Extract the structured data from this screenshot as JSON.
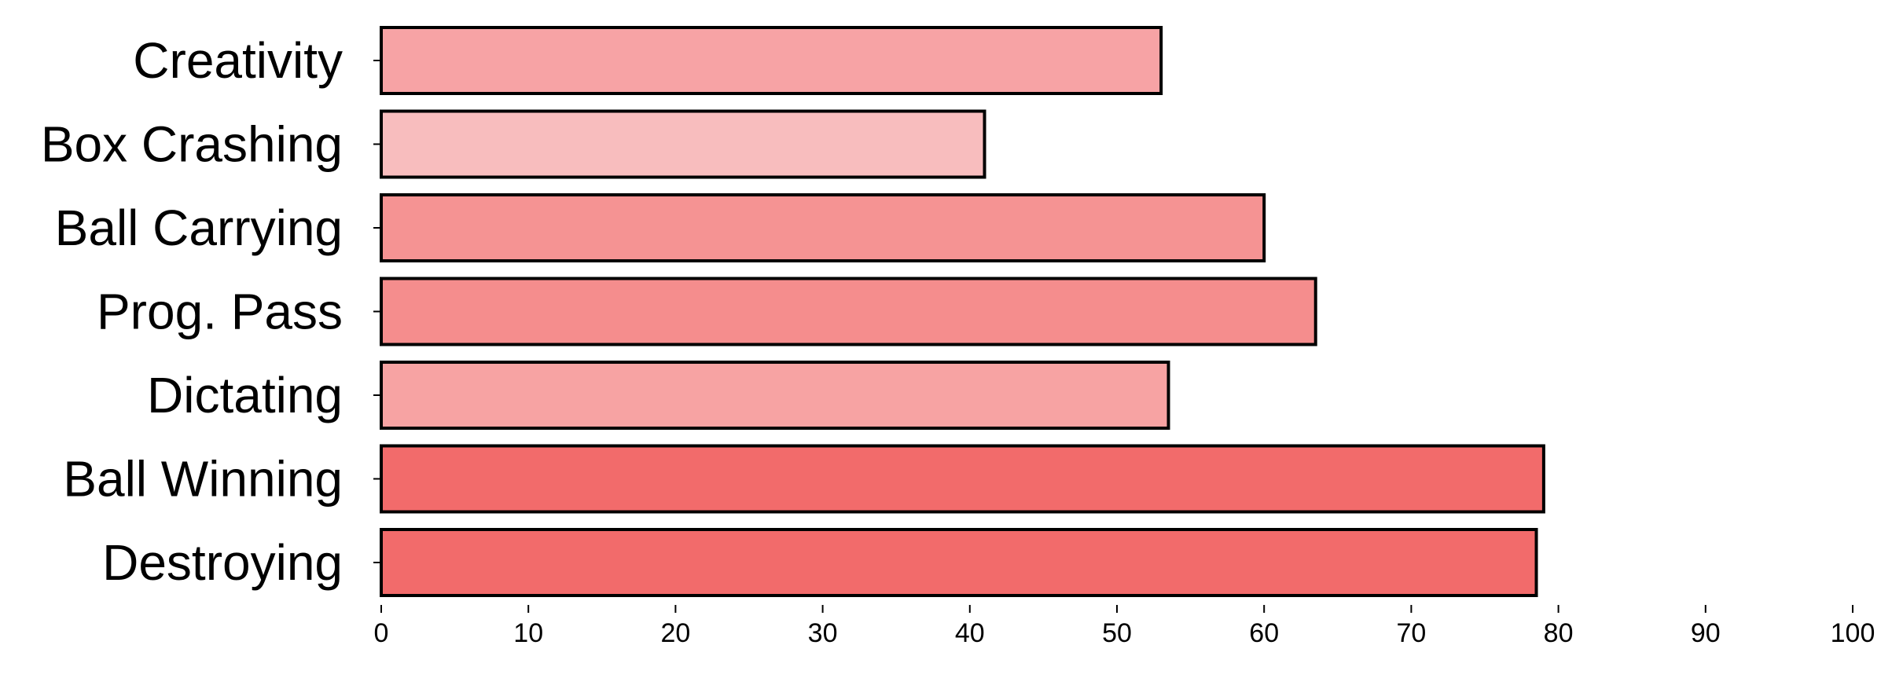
{
  "chart_data": {
    "type": "bar",
    "orientation": "horizontal",
    "title": "",
    "xlabel": "",
    "ylabel": "",
    "categories": [
      "Creativity",
      "Box Crashing",
      "Ball Carrying",
      "Prog. Pass",
      "Dictating",
      "Ball Winning",
      "Destroying"
    ],
    "values": [
      53,
      41,
      60,
      63.5,
      53.5,
      79,
      78.5
    ],
    "colors": [
      "#f7a3a5",
      "#f8bdbe",
      "#f59393",
      "#f58d8d",
      "#f7a3a3",
      "#f26b6b",
      "#f26b6b"
    ],
    "xlim": [
      0,
      100
    ],
    "xticks": [
      0,
      10,
      20,
      30,
      40,
      50,
      60,
      70,
      80,
      90,
      100
    ],
    "grid": false,
    "legend": "none"
  }
}
